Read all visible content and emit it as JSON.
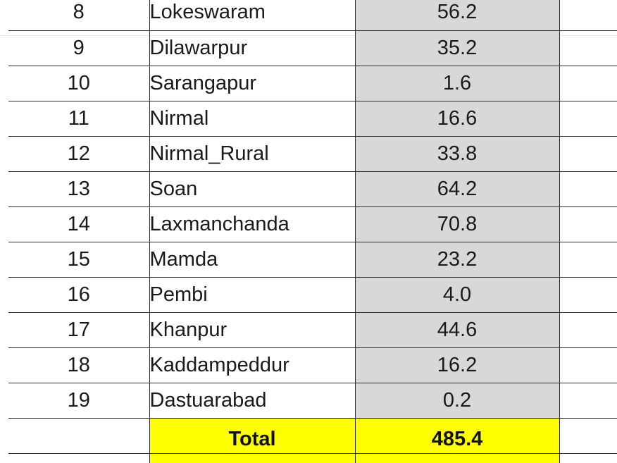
{
  "table": {
    "rows": [
      {
        "num": "8",
        "name": "Lokeswaram",
        "value": "56.2"
      },
      {
        "num": "9",
        "name": "Dilawarpur",
        "value": "35.2"
      },
      {
        "num": "10",
        "name": "Sarangapur",
        "value": "1.6"
      },
      {
        "num": "11",
        "name": "Nirmal",
        "value": "16.6"
      },
      {
        "num": "12",
        "name": "Nirmal_Rural",
        "value": "33.8"
      },
      {
        "num": "13",
        "name": "Soan",
        "value": "64.2"
      },
      {
        "num": "14",
        "name": "Laxmanchanda",
        "value": "70.8"
      },
      {
        "num": "15",
        "name": "Mamda",
        "value": "23.2"
      },
      {
        "num": "16",
        "name": "Pembi",
        "value": "4.0"
      },
      {
        "num": "17",
        "name": "Khanpur",
        "value": "44.6"
      },
      {
        "num": "18",
        "name": "Kaddampeddur",
        "value": "16.2"
      },
      {
        "num": "19",
        "name": "Dastuarabad",
        "value": "0.2"
      }
    ],
    "total": {
      "label": "Total",
      "value": "485.4"
    }
  },
  "colors": {
    "value_column_fill": "#d6d9d6",
    "total_highlight": "#ffff00",
    "border": "#2b2b2b"
  }
}
